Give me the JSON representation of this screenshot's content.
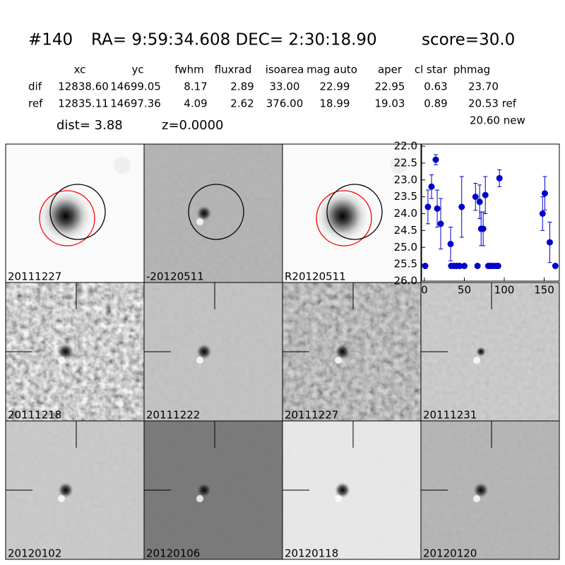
{
  "header": {
    "id": "#140",
    "coords": "RA= 9:59:34.608 DEC= 2:30:18.90",
    "score": "score=30.0"
  },
  "table": {
    "columns": [
      "xc",
      "yc",
      "fwhm",
      "fluxrad",
      "isoarea",
      "mag auto",
      "aper",
      "cl star",
      "phmag"
    ],
    "rows": [
      {
        "name": "dif",
        "cells": [
          "12838.60",
          "14699.05",
          "8.17",
          "2.89",
          "33.00",
          "22.99",
          "22.95",
          "0.63",
          "23.70"
        ]
      },
      {
        "name": "ref",
        "cells": [
          "12835.11",
          "14697.36",
          "4.09",
          "2.62",
          "376.00",
          "18.99",
          "19.03",
          "0.89",
          "20.53 ref"
        ]
      }
    ],
    "extra": "20.60 new",
    "dist": "dist=  3.88",
    "z": "z=0.0000"
  },
  "panels": [
    {
      "label": "20111227",
      "color": "#000000"
    },
    {
      "label": "-20120511",
      "color": "#000000"
    },
    {
      "label": "R20120511",
      "color": "#000000"
    },
    {
      "label": "20111218",
      "color": "#000000"
    },
    {
      "label": "20111222",
      "color": "#000000"
    },
    {
      "label": "20111227",
      "color": "#ff0000"
    },
    {
      "label": "20111231",
      "color": "#000000"
    },
    {
      "label": "20120102",
      "color": "#000000"
    },
    {
      "label": "20120106",
      "color": "#000000"
    },
    {
      "label": "20120118",
      "color": "#000000"
    },
    {
      "label": "20120120",
      "color": "#000000"
    }
  ],
  "chart_data": {
    "type": "scatter",
    "color": "#0000cc",
    "x": [
      1,
      4.4,
      8.9,
      14.2,
      16,
      20.4,
      32.8,
      33.5,
      37,
      40.5,
      44,
      46.7,
      50,
      64,
      66.5,
      69.2,
      71,
      73.6,
      76.3,
      80,
      82.7,
      86,
      89.6,
      92.3,
      94,
      148,
      150.8,
      157,
      164
    ],
    "values": [
      25.55,
      23.8,
      23.2,
      22.4,
      23.85,
      24.3,
      24.9,
      25.55,
      25.55,
      25.55,
      25.55,
      23.8,
      25.55,
      23.5,
      25.55,
      23.65,
      24.45,
      24.45,
      23.45,
      25.55,
      25.55,
      25.55,
      25.55,
      25.55,
      22.95,
      24.0,
      23.4,
      24.85,
      25.55
    ],
    "errors": [
      null,
      0.5,
      0.35,
      0.15,
      0.55,
      0.75,
      0.5,
      null,
      null,
      null,
      null,
      0.9,
      null,
      0.4,
      null,
      0.5,
      0.5,
      0.5,
      0.55,
      null,
      null,
      null,
      null,
      null,
      0.25,
      0.5,
      0.5,
      0.6,
      null
    ],
    "xlim": [
      -3.5,
      169
    ],
    "ylim": [
      26,
      22
    ],
    "xticks": [
      0,
      50,
      100,
      150
    ],
    "yticks": [
      {
        "value": 22,
        "label": "22.0"
      },
      {
        "value": 22.5,
        "label": "22.5"
      },
      {
        "value": 23,
        "label": "23.0"
      },
      {
        "value": 23.5,
        "label": "23.5"
      },
      {
        "value": 24,
        "label": "24.0"
      },
      {
        "value": 24.5,
        "label": "24.5"
      },
      {
        "value": 25,
        "label": "25.0"
      },
      {
        "value": 25.5,
        "label": "25.5"
      },
      {
        "value": 26,
        "label": "26.0"
      }
    ]
  }
}
